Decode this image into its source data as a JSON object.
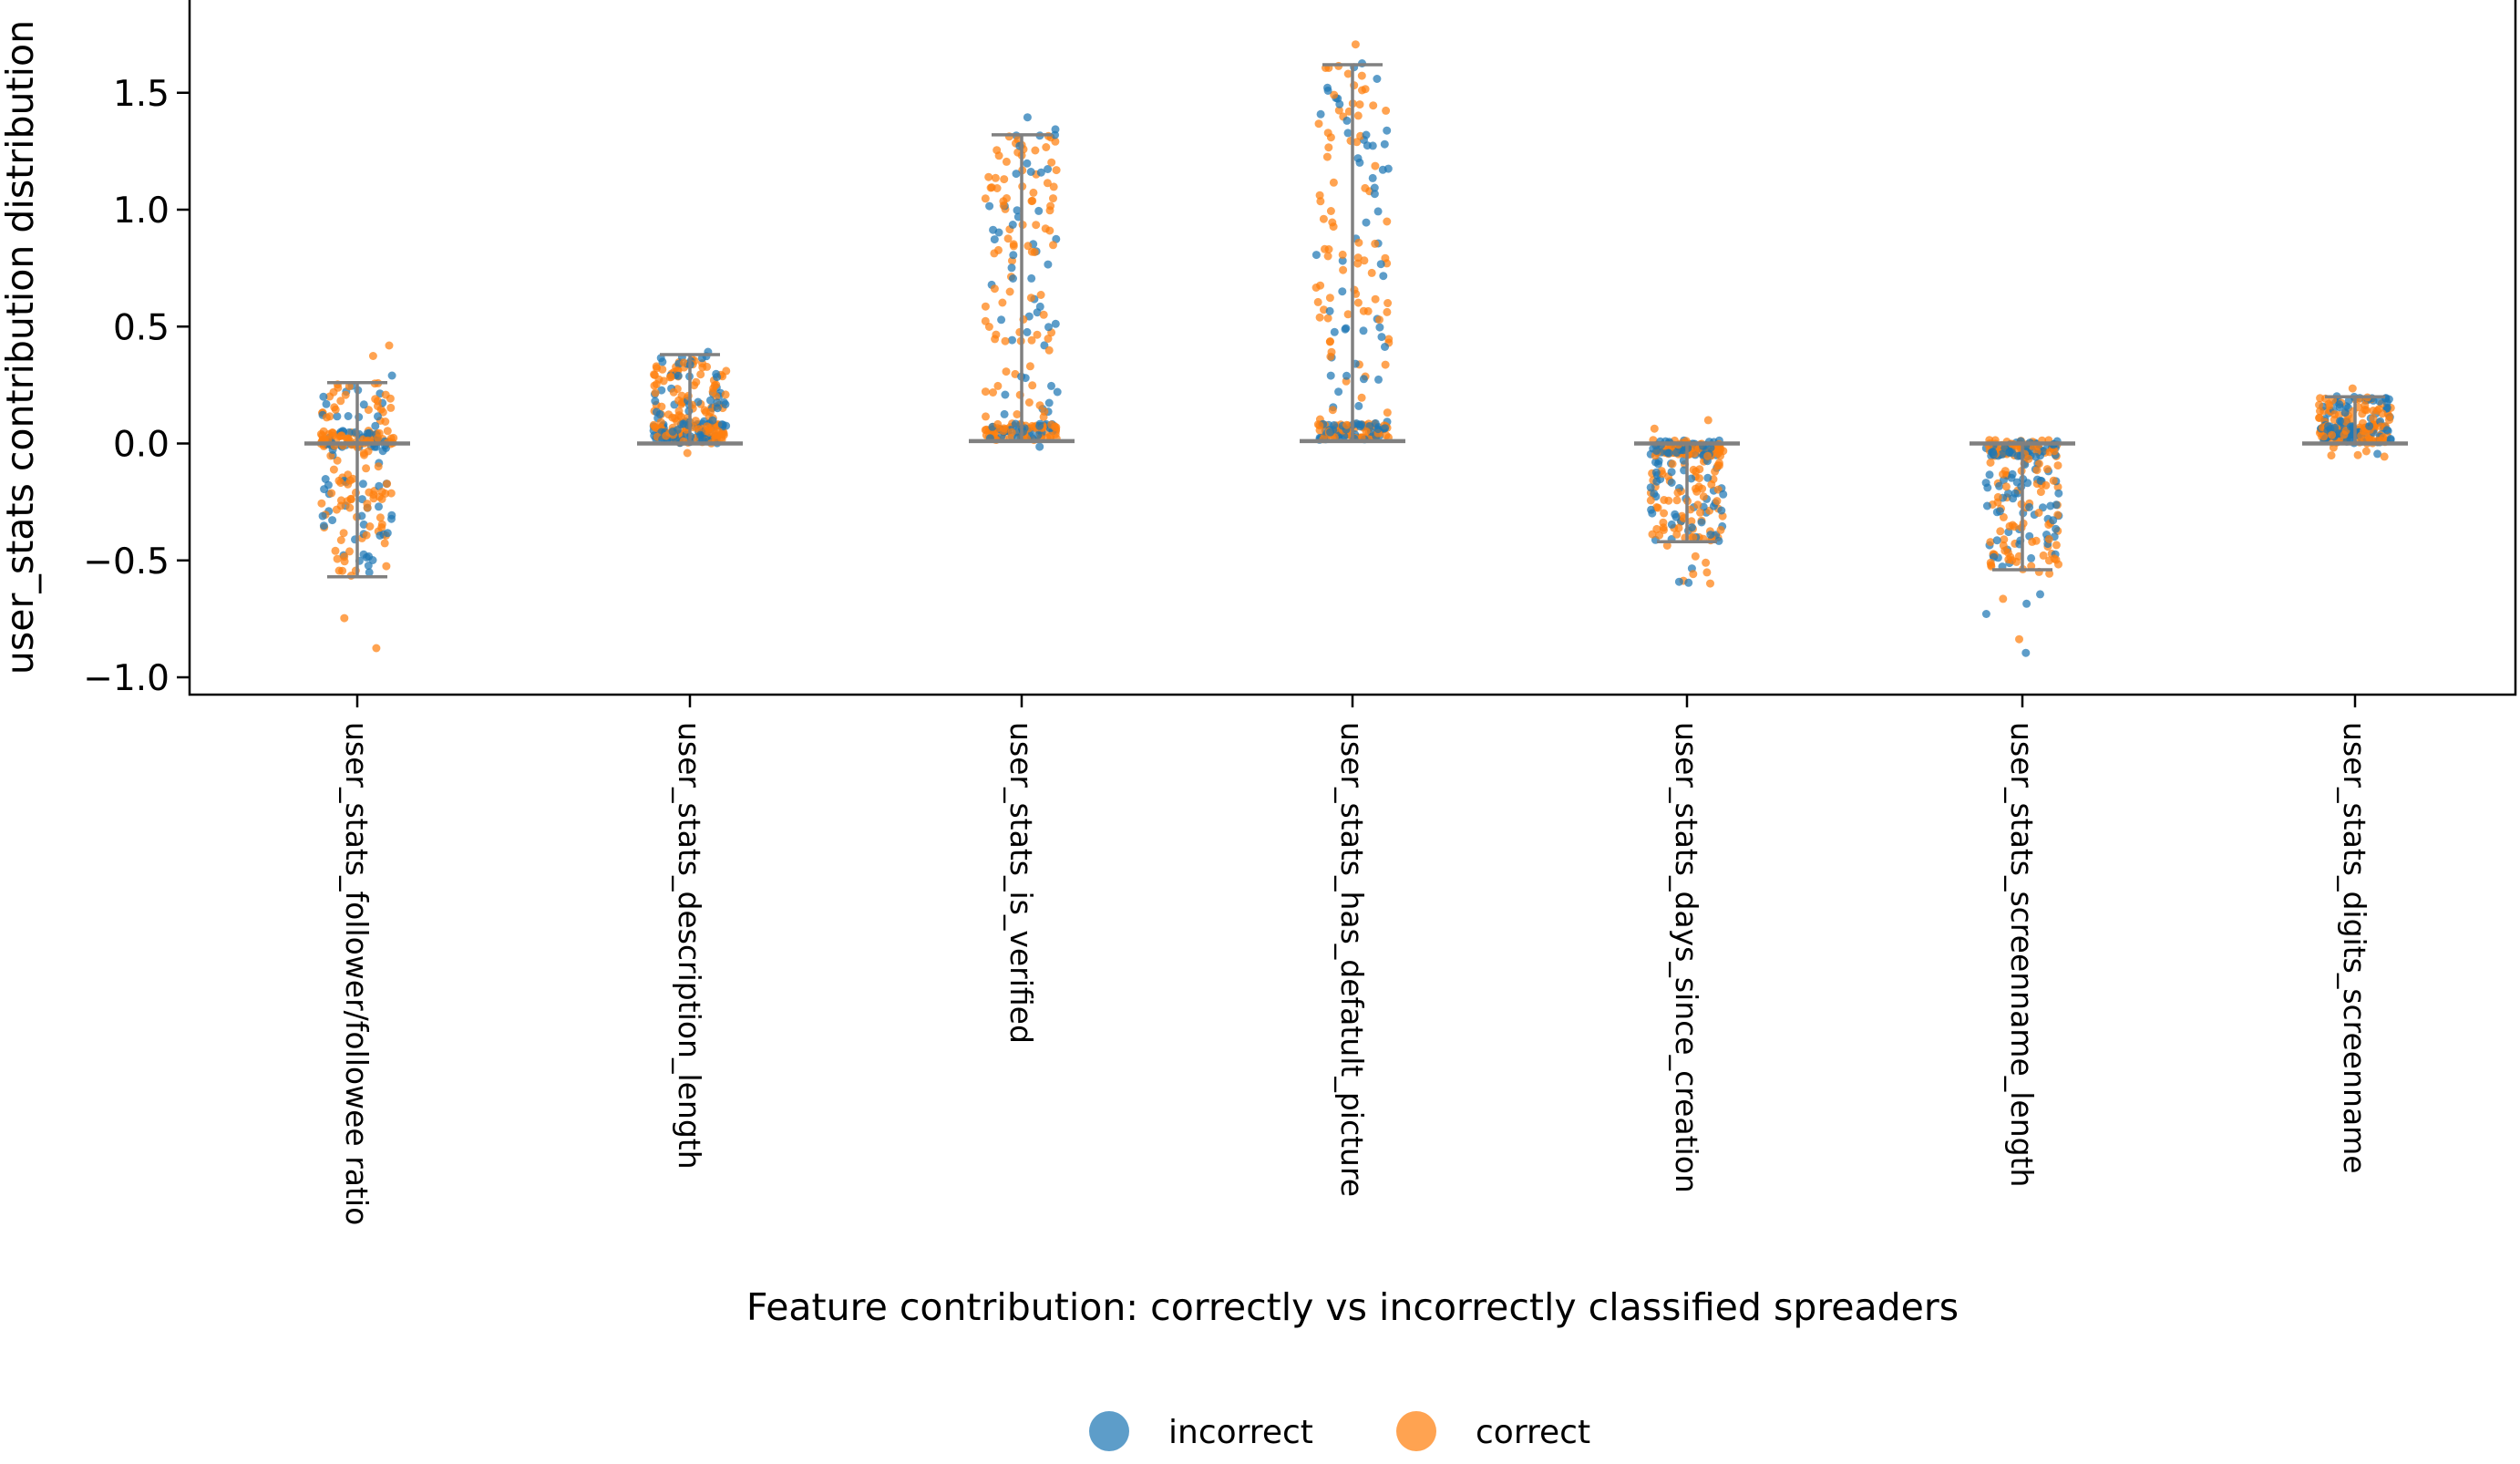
{
  "chart_data": {
    "type": "scatter",
    "subtype": "strip-plot-with-errorbars",
    "xlabel": "Feature contribution: correctly vs incorrectly classified spreaders",
    "ylabel": "user_stats contribution distribution",
    "ylim": [
      -1.08,
      1.78
    ],
    "yticks": [
      -1.0,
      -0.5,
      0.0,
      0.5,
      1.0,
      1.5
    ],
    "ytick_labels": [
      "−1.0",
      "−0.5",
      "0.0",
      "0.5",
      "1.0",
      "1.5"
    ],
    "grid": false,
    "legend_position": "bottom-center",
    "categories": [
      "user_stats_follower/followee ratio",
      "user_stats_description_length",
      "user_stats_is_verified",
      "user_stats_has_defatult_picture",
      "user_stats_days_since_creation",
      "user_stats_screenname_length",
      "user_stats_digits_screenname"
    ],
    "series": [
      {
        "name": "incorrect",
        "color": "#1f77b4"
      },
      {
        "name": "correct",
        "color": "#ff7f0e"
      }
    ],
    "distributions": [
      {
        "mean": 0.0,
        "lower": -0.57,
        "upper": 0.26,
        "min": -0.92,
        "max": 0.47,
        "spike": 0.02
      },
      {
        "mean": 0.0,
        "lower": 0.0,
        "upper": 0.38,
        "min": -0.08,
        "max": 0.42,
        "spike": 0.05
      },
      {
        "mean": 0.01,
        "lower": 0.01,
        "upper": 1.32,
        "min": -0.02,
        "max": 1.41,
        "spike": 0.05
      },
      {
        "mean": 0.01,
        "lower": 0.01,
        "upper": 1.62,
        "min": -0.07,
        "max": 1.77,
        "spike": 0.05
      },
      {
        "mean": 0.0,
        "lower": -0.42,
        "upper": 0.0,
        "min": -0.63,
        "max": 0.11,
        "spike": -0.02
      },
      {
        "mean": 0.0,
        "lower": -0.54,
        "upper": 0.0,
        "min": -0.95,
        "max": 0.06,
        "spike": -0.02
      },
      {
        "mean": 0.0,
        "lower": 0.0,
        "upper": 0.2,
        "min": -0.06,
        "max": 0.24,
        "spike": 0.04
      }
    ]
  }
}
